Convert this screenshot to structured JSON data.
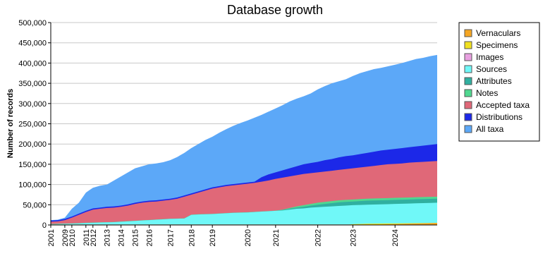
{
  "chart_data": {
    "type": "area",
    "title": "Database growth",
    "y_label": "Number of records",
    "categories": [
      "2001",
      null,
      "2009",
      "2010",
      null,
      "2011",
      "2012",
      null,
      "2013",
      null,
      "2014",
      null,
      "2015",
      null,
      "2016",
      null,
      null,
      "2017",
      null,
      null,
      "2018",
      null,
      null,
      "2019",
      null,
      null,
      null,
      null,
      "2020",
      null,
      null,
      null,
      "2021",
      null,
      null,
      null,
      null,
      null,
      "2022",
      null,
      null,
      null,
      null,
      "2023",
      null,
      null,
      null,
      null,
      null,
      "2024",
      null,
      null,
      null,
      null,
      null,
      null
    ],
    "ylim": [
      0,
      500000
    ],
    "yticks": [
      0,
      {
        "value": 50000,
        "label": "50,000"
      },
      {
        "value": 100000,
        "label": "100,000"
      },
      {
        "value": 150000,
        "label": "150,000"
      },
      {
        "value": 200000,
        "label": "200,000"
      },
      {
        "value": 250000,
        "label": "250,000"
      },
      {
        "value": 300000,
        "label": "300,000"
      },
      {
        "value": 350000,
        "label": "350,000"
      },
      {
        "value": 400000,
        "label": "400,000"
      },
      {
        "value": 450000,
        "label": "450,000"
      },
      {
        "value": 500000,
        "label": "500,000"
      }
    ],
    "grid": true,
    "legend": "right",
    "series": [
      {
        "name": "Vernaculars",
        "color": "#f5a623",
        "values": [
          1000,
          1000,
          1000,
          1000,
          1000,
          1000,
          1000,
          1000,
          1000,
          1000,
          1000,
          1000,
          1000,
          1000,
          1000,
          1000,
          1000,
          1000,
          1000,
          1000,
          1000,
          1000,
          1000,
          1000,
          1000,
          1000,
          1000,
          1000,
          1000,
          1000,
          1000,
          1000,
          1000,
          1000,
          1000,
          1000,
          1000,
          1000,
          1000,
          1000,
          1000,
          1000,
          1000,
          1000,
          1000,
          1000,
          1000,
          1000,
          1500,
          2000,
          2500,
          3000,
          3500,
          4000,
          4500,
          5000
        ]
      },
      {
        "name": "Specimens",
        "color": "#f0e020",
        "values": [
          0,
          0,
          0,
          0,
          0,
          0,
          0,
          0,
          0,
          0,
          0,
          0,
          0,
          0,
          0,
          0,
          0,
          0,
          0,
          0,
          0,
          0,
          0,
          0,
          0,
          0,
          0,
          0,
          0,
          0,
          0,
          0,
          0,
          0,
          0,
          0,
          0,
          0,
          0,
          0,
          0,
          0,
          0,
          2000,
          2500,
          3000,
          3200,
          3400,
          3600,
          3800,
          4000,
          4200,
          4400,
          4600,
          4800,
          5000
        ]
      },
      {
        "name": "Images",
        "color": "#e8a0e0",
        "values": [
          1000,
          1000,
          1000,
          1000,
          1000,
          1000,
          1000,
          1000,
          1000,
          1000,
          1000,
          1000,
          1000,
          1000,
          1000,
          1000,
          1000,
          1000,
          1000,
          1000,
          1000,
          1000,
          1000,
          1000,
          1000,
          1000,
          1000,
          1000,
          1000,
          1000,
          1000,
          1000,
          1000,
          1000,
          1000,
          1000,
          1000,
          1000,
          1000,
          1000,
          1000,
          1000,
          1000,
          1000,
          1000,
          1000,
          1000,
          1000,
          1000,
          1000,
          1000,
          1000,
          1000,
          1000,
          1000,
          1000
        ]
      },
      {
        "name": "Sources",
        "color": "#70f8f8",
        "values": [
          2000,
          2500,
          3000,
          3500,
          4000,
          5000,
          5500,
          6000,
          6500,
          7000,
          8000,
          9000,
          10000,
          11000,
          12000,
          13000,
          14000,
          15000,
          15500,
          16000,
          25000,
          26000,
          26500,
          27000,
          28000,
          29000,
          30000,
          30500,
          31000,
          32000,
          33000,
          34000,
          35000,
          36000,
          38000,
          40000,
          41000,
          43000,
          44000,
          45000,
          46000,
          47000,
          48000,
          49000,
          49500,
          50000,
          50500,
          51000,
          51500,
          52000,
          52500,
          53000,
          53500,
          54000,
          54500,
          55000
        ]
      },
      {
        "name": "Attributes",
        "color": "#30b0a0",
        "values": [
          2000,
          2500,
          3000,
          3500,
          4000,
          5000,
          5500,
          6000,
          6500,
          7000,
          8000,
          9000,
          10000,
          11000,
          12000,
          13000,
          14000,
          15000,
          15500,
          16000,
          25000,
          26000,
          26500,
          27000,
          28000,
          29000,
          30000,
          30500,
          31000,
          32000,
          33000,
          34000,
          35000,
          37000,
          40000,
          43000,
          45000,
          48000,
          50000,
          52000,
          54000,
          56000,
          57000,
          58000,
          59000,
          60000,
          60500,
          61000,
          61500,
          62000,
          62500,
          63000,
          63500,
          64000,
          64500,
          65000
        ]
      },
      {
        "name": "Notes",
        "color": "#50d890",
        "values": [
          2500,
          3000,
          3500,
          4000,
          4500,
          5500,
          6000,
          6500,
          7000,
          7500,
          8500,
          9500,
          10500,
          11500,
          12500,
          13500,
          14500,
          15500,
          16000,
          16500,
          25500,
          26500,
          27000,
          27500,
          28500,
          29500,
          30500,
          31000,
          31500,
          32500,
          33500,
          34500,
          35500,
          38000,
          42000,
          46000,
          49000,
          52000,
          55000,
          57000,
          59000,
          61000,
          62000,
          63000,
          64000,
          65000,
          65500,
          66000,
          66500,
          67000,
          67500,
          68000,
          68500,
          69000,
          69500,
          70000
        ]
      },
      {
        "name": "Accepted taxa",
        "color": "#e06878",
        "values": [
          8000,
          9000,
          12000,
          18000,
          25000,
          32000,
          38000,
          40000,
          42000,
          43000,
          45000,
          48000,
          52000,
          55000,
          57000,
          58000,
          60000,
          62000,
          65000,
          70000,
          75000,
          80000,
          85000,
          90000,
          93000,
          96000,
          98000,
          100000,
          102000,
          104000,
          107000,
          110000,
          114000,
          117000,
          120000,
          123000,
          126000,
          128000,
          130000,
          132000,
          134000,
          136000,
          138000,
          140000,
          142000,
          144000,
          146000,
          148000,
          150000,
          151000,
          152000,
          154000,
          155000,
          156000,
          157000,
          158000
        ]
      },
      {
        "name": "Distributions",
        "color": "#1c28e8",
        "values": [
          11000,
          12000,
          15000,
          21000,
          28000,
          35000,
          41000,
          43000,
          45000,
          46000,
          48000,
          51000,
          55000,
          58000,
          60000,
          61000,
          63000,
          65000,
          68000,
          73000,
          78000,
          83000,
          88000,
          93000,
          96000,
          99000,
          101000,
          103000,
          105000,
          107000,
          118000,
          125000,
          130000,
          135000,
          140000,
          145000,
          150000,
          153000,
          156000,
          160000,
          163000,
          167000,
          170000,
          172000,
          175000,
          178000,
          181000,
          184000,
          186000,
          188000,
          190000,
          192000,
          194000,
          196000,
          198000,
          200000
        ]
      },
      {
        "name": "All taxa",
        "color": "#5ca8f8",
        "values": [
          12000,
          13000,
          18000,
          40000,
          55000,
          80000,
          92000,
          97000,
          100000,
          110000,
          120000,
          130000,
          140000,
          145000,
          150000,
          152000,
          155000,
          160000,
          168000,
          178000,
          190000,
          200000,
          210000,
          218000,
          228000,
          237000,
          245000,
          252000,
          258000,
          265000,
          272000,
          280000,
          288000,
          296000,
          305000,
          312000,
          318000,
          325000,
          335000,
          343000,
          350000,
          355000,
          360000,
          368000,
          375000,
          380000,
          385000,
          388000,
          392000,
          396000,
          400000,
          405000,
          410000,
          413000,
          417000,
          420000
        ]
      }
    ]
  }
}
